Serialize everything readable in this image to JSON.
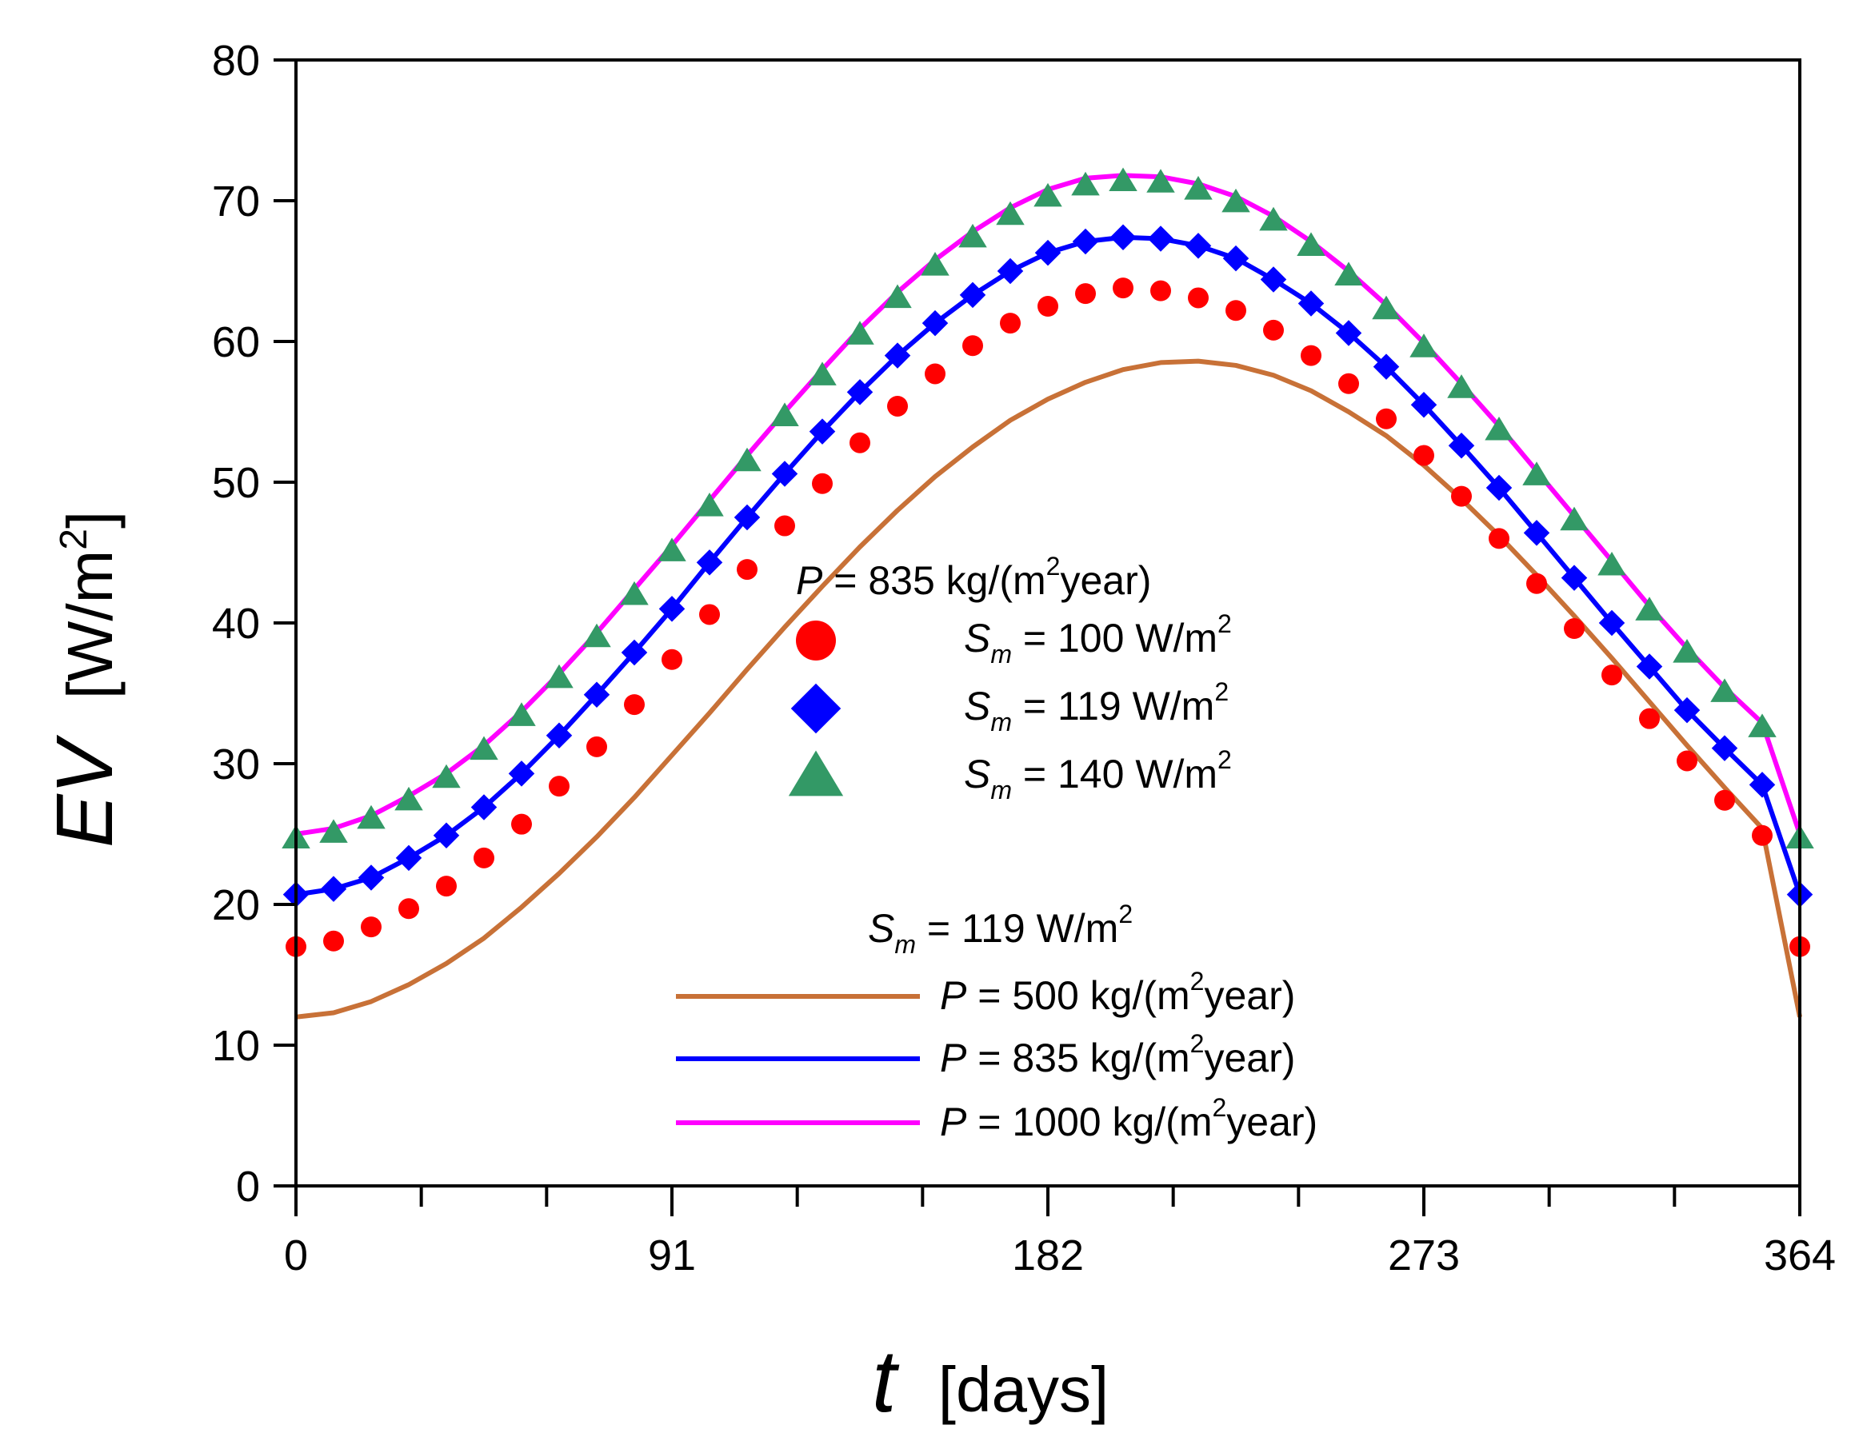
{
  "chart_data": {
    "type": "line",
    "xlabel": {
      "var": "t",
      "unit": "[days]"
    },
    "ylabel": {
      "var": "EV",
      "unit_pre": "[W/m",
      "unit_sup": "2",
      "unit_post": "]"
    },
    "xlim": [
      0,
      364
    ],
    "ylim": [
      0,
      80
    ],
    "x_ticks": [
      0,
      91,
      182,
      273,
      364
    ],
    "y_ticks": [
      0,
      10,
      20,
      30,
      40,
      50,
      60,
      70,
      80
    ],
    "x": [
      0,
      9.1,
      18.2,
      27.3,
      36.4,
      45.5,
      54.6,
      63.7,
      72.8,
      81.9,
      91,
      100.1,
      109.2,
      118.3,
      127.4,
      136.5,
      145.6,
      154.7,
      163.8,
      172.9,
      182,
      191.1,
      200.2,
      209.3,
      218.4,
      227.5,
      236.6,
      245.7,
      254.8,
      263.9,
      273,
      282.1,
      291.2,
      300.3,
      309.4,
      318.5,
      327.6,
      336.7,
      345.8,
      354.9,
      364
    ],
    "legend_groups": [
      {
        "heading": {
          "var": "P",
          "text": " = 835 kg/(m",
          "sup": "2",
          "post": "year)"
        },
        "entries": [
          {
            "series": 0,
            "var": "S",
            "sub": "m",
            "text": " = 100 W/m",
            "sup": "2",
            "post": ""
          },
          {
            "series": 1,
            "var": "S",
            "sub": "m",
            "text": " = 119 W/m",
            "sup": "2",
            "post": ""
          },
          {
            "series": 2,
            "var": "S",
            "sub": "m",
            "text": " = 140 W/m",
            "sup": "2",
            "post": ""
          }
        ]
      },
      {
        "heading": {
          "var": "S",
          "sub": "m",
          "text": " = 119 W/m",
          "sup": "2",
          "post": ""
        },
        "entries": [
          {
            "series": 3,
            "var": "P",
            "text": " = 500 kg/(m",
            "sup": "2",
            "post": "year)"
          },
          {
            "series": 4,
            "var": "P",
            "text": " = 835 kg/(m",
            "sup": "2",
            "post": "year)"
          },
          {
            "series": 5,
            "var": "P",
            "text": " = 1000 kg/(m",
            "sup": "2",
            "post": "year)"
          }
        ]
      }
    ],
    "series": [
      {
        "style": "markers",
        "marker": "circle",
        "color": "#ff0000",
        "values": [
          17.0,
          17.4,
          18.4,
          19.7,
          21.3,
          23.3,
          25.7,
          28.4,
          31.2,
          34.2,
          37.4,
          40.6,
          43.8,
          46.9,
          49.9,
          52.8,
          55.4,
          57.7,
          59.7,
          61.3,
          62.5,
          63.4,
          63.8,
          63.6,
          63.1,
          62.2,
          60.8,
          59.0,
          57.0,
          54.5,
          51.9,
          49.0,
          46.0,
          42.8,
          39.6,
          36.3,
          33.2,
          30.2,
          27.4,
          24.9,
          17.0
        ]
      },
      {
        "style": "markers",
        "marker": "diamond",
        "color": "#0000ff",
        "values": [
          20.7,
          21.1,
          21.9,
          23.3,
          24.9,
          26.9,
          29.3,
          32.0,
          34.9,
          37.9,
          41.0,
          44.3,
          47.5,
          50.6,
          53.6,
          56.4,
          59.0,
          61.3,
          63.3,
          65.0,
          66.3,
          67.1,
          67.4,
          67.3,
          66.8,
          65.9,
          64.4,
          62.7,
          60.6,
          58.2,
          55.5,
          52.6,
          49.6,
          46.4,
          43.2,
          40.0,
          36.9,
          33.8,
          31.1,
          28.5,
          20.7
        ]
      },
      {
        "style": "markers",
        "marker": "triangle",
        "color": "#339966",
        "values": [
          24.7,
          25.1,
          26.1,
          27.4,
          29.0,
          31.0,
          33.4,
          36.1,
          39.0,
          42.0,
          45.1,
          48.3,
          51.5,
          54.7,
          57.6,
          60.5,
          63.1,
          65.4,
          67.4,
          69.0,
          70.3,
          71.1,
          71.4,
          71.3,
          70.8,
          69.9,
          68.6,
          66.8,
          64.7,
          62.3,
          59.6,
          56.7,
          53.7,
          50.5,
          47.3,
          44.1,
          40.9,
          37.9,
          35.1,
          32.6,
          24.7
        ]
      },
      {
        "style": "line",
        "color": "#c87137",
        "values": [
          12.0,
          12.3,
          13.1,
          14.3,
          15.8,
          17.6,
          19.8,
          22.2,
          24.8,
          27.6,
          30.6,
          33.6,
          36.7,
          39.7,
          42.6,
          45.4,
          48.0,
          50.4,
          52.5,
          54.4,
          55.9,
          57.1,
          58.0,
          58.5,
          58.6,
          58.3,
          57.6,
          56.5,
          55.0,
          53.3,
          51.2,
          48.8,
          46.2,
          43.4,
          40.5,
          37.5,
          34.4,
          31.3,
          28.3,
          25.4,
          12.0
        ]
      },
      {
        "style": "line",
        "color": "#0000ff",
        "values": [
          20.7,
          21.1,
          21.9,
          23.3,
          24.9,
          26.9,
          29.3,
          32.0,
          34.9,
          37.9,
          41.0,
          44.3,
          47.5,
          50.6,
          53.6,
          56.4,
          59.0,
          61.3,
          63.3,
          65.0,
          66.3,
          67.1,
          67.4,
          67.3,
          66.8,
          65.9,
          64.4,
          62.7,
          60.6,
          58.2,
          55.5,
          52.6,
          49.6,
          46.4,
          43.2,
          40.0,
          36.9,
          33.8,
          31.1,
          28.5,
          20.7
        ]
      },
      {
        "style": "line",
        "color": "#ff00ff",
        "values": [
          25.0,
          25.4,
          26.3,
          27.7,
          29.3,
          31.3,
          33.7,
          36.4,
          39.3,
          42.4,
          45.5,
          48.7,
          51.9,
          55.0,
          58.0,
          60.9,
          63.5,
          65.8,
          67.8,
          69.5,
          70.8,
          71.6,
          71.8,
          71.7,
          71.2,
          70.3,
          68.9,
          67.1,
          65.0,
          62.6,
          59.9,
          57.0,
          54.0,
          50.8,
          47.6,
          44.4,
          41.2,
          38.2,
          35.4,
          32.9,
          25.0
        ]
      }
    ]
  }
}
